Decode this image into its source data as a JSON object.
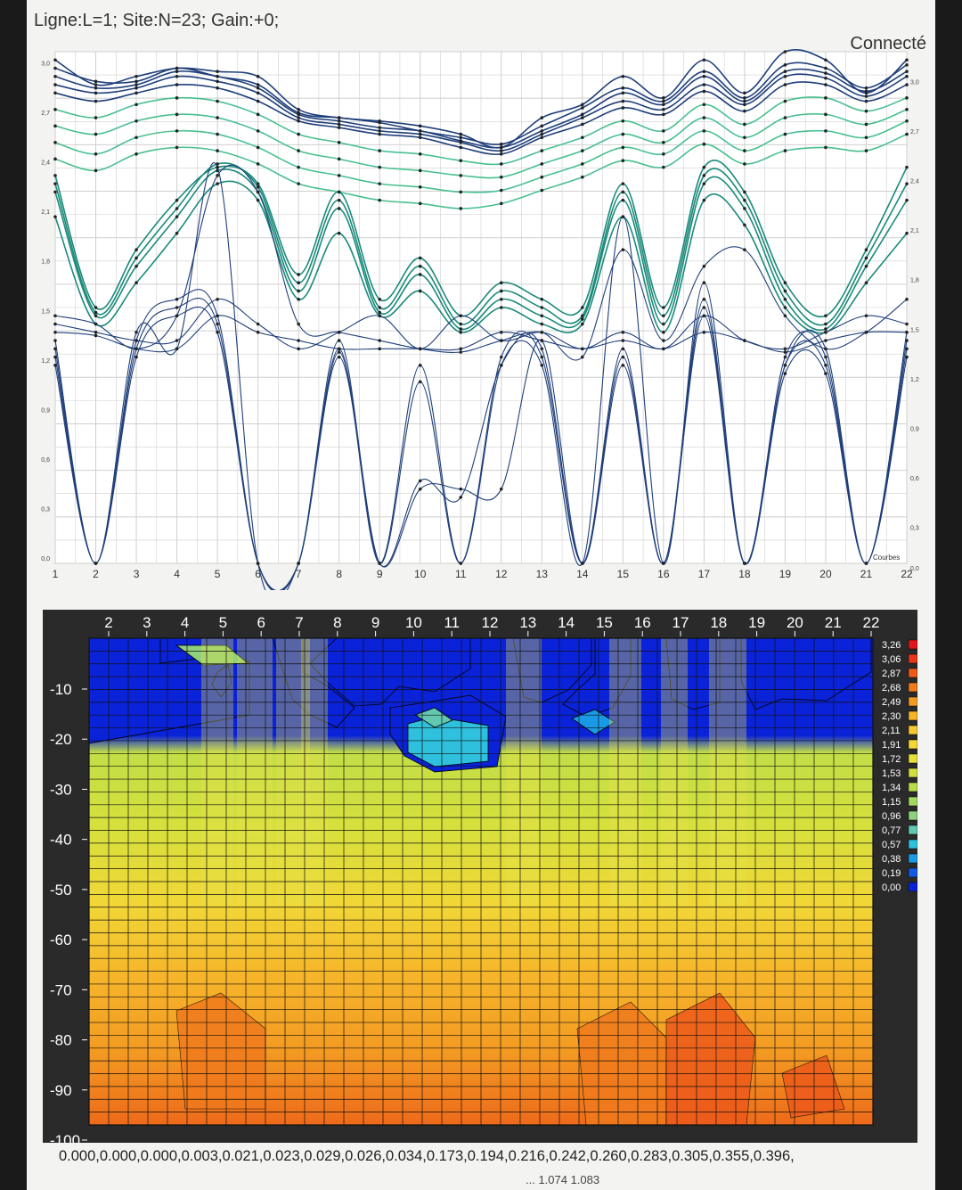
{
  "header": {
    "status_line": "Ligne:L=1;  Site:N=23;  Gain:+0;",
    "connection": "Connecté"
  },
  "curves_chart": {
    "type": "line",
    "x": [
      1,
      2,
      3,
      4,
      5,
      6,
      7,
      8,
      9,
      10,
      11,
      12,
      13,
      14,
      15,
      16,
      17,
      18,
      19,
      20,
      21,
      22
    ],
    "y_ticks_left": [
      "3,0",
      "2,7",
      "2,4",
      "2,1",
      "1,8",
      "1,5",
      "1,2",
      "0,9",
      "0,6",
      "0,3",
      "0,0"
    ],
    "y_ticks_right": [
      "3,0",
      "2,7",
      "2,4",
      "2,1",
      "1,8",
      "1,5",
      "1,2",
      "0,9",
      "0,6",
      "0,3",
      "0,0"
    ],
    "x_ticks": [
      "1",
      "2",
      "3",
      "4",
      "5",
      "6",
      "7",
      "8",
      "9",
      "10",
      "11",
      "12",
      "13",
      "14",
      "15",
      "16",
      "17",
      "18",
      "19",
      "20",
      "21",
      "22"
    ],
    "ylim": [
      0,
      3.1
    ],
    "legend_label": "Courbes",
    "colors": {
      "dark": "#1f3f7a",
      "mid": "#1a8a7a",
      "light": "#48c090"
    },
    "series": [
      {
        "values": [
          3.05,
          2.9,
          2.95,
          3.0,
          2.98,
          2.95,
          2.75,
          2.7,
          2.68,
          2.65,
          2.6,
          2.52,
          2.7,
          2.78,
          2.95,
          2.82,
          3.05,
          2.85,
          3.1,
          3.05,
          2.85,
          3.05
        ]
      },
      {
        "values": [
          3.0,
          2.92,
          2.92,
          3.0,
          2.95,
          2.9,
          2.73,
          2.7,
          2.67,
          2.62,
          2.58,
          2.54,
          2.65,
          2.76,
          2.88,
          2.8,
          2.98,
          2.82,
          3.02,
          3.0,
          2.88,
          3.02
        ]
      },
      {
        "values": [
          2.95,
          2.88,
          2.9,
          2.98,
          2.95,
          2.88,
          2.72,
          2.68,
          2.64,
          2.62,
          2.56,
          2.52,
          2.62,
          2.72,
          2.85,
          2.78,
          2.95,
          2.8,
          2.98,
          2.97,
          2.86,
          2.98
        ]
      },
      {
        "values": [
          2.9,
          2.85,
          2.88,
          2.95,
          2.92,
          2.85,
          2.7,
          2.66,
          2.62,
          2.6,
          2.55,
          2.5,
          2.6,
          2.7,
          2.8,
          2.75,
          2.9,
          2.78,
          2.95,
          2.94,
          2.83,
          2.95
        ]
      },
      {
        "values": [
          2.85,
          2.8,
          2.85,
          2.9,
          2.88,
          2.8,
          2.68,
          2.64,
          2.6,
          2.58,
          2.52,
          2.48,
          2.58,
          2.66,
          2.76,
          2.72,
          2.86,
          2.74,
          2.9,
          2.9,
          2.8,
          2.9
        ]
      },
      {
        "values": [
          2.75,
          2.7,
          2.78,
          2.82,
          2.8,
          2.72,
          2.6,
          2.55,
          2.5,
          2.48,
          2.44,
          2.42,
          2.5,
          2.58,
          2.68,
          2.62,
          2.78,
          2.66,
          2.8,
          2.82,
          2.74,
          2.82
        ]
      },
      {
        "values": [
          2.65,
          2.6,
          2.68,
          2.72,
          2.7,
          2.62,
          2.5,
          2.45,
          2.4,
          2.38,
          2.35,
          2.34,
          2.42,
          2.5,
          2.6,
          2.55,
          2.7,
          2.58,
          2.7,
          2.72,
          2.66,
          2.75
        ]
      },
      {
        "values": [
          2.55,
          2.48,
          2.58,
          2.62,
          2.6,
          2.52,
          2.4,
          2.35,
          2.3,
          2.28,
          2.25,
          2.26,
          2.34,
          2.42,
          2.52,
          2.48,
          2.62,
          2.5,
          2.6,
          2.62,
          2.58,
          2.68
        ]
      },
      {
        "values": [
          2.45,
          2.38,
          2.48,
          2.52,
          2.5,
          2.42,
          2.3,
          2.25,
          2.2,
          2.18,
          2.15,
          2.18,
          2.26,
          2.34,
          2.44,
          2.4,
          2.54,
          2.42,
          2.5,
          2.52,
          2.5,
          2.6
        ]
      },
      {
        "values": [
          2.35,
          1.55,
          1.9,
          2.2,
          2.4,
          2.3,
          1.75,
          2.25,
          1.6,
          1.85,
          1.5,
          1.7,
          1.6,
          1.55,
          2.3,
          1.55,
          2.4,
          2.25,
          1.7,
          1.5,
          1.9,
          2.4
        ]
      },
      {
        "values": [
          2.3,
          1.52,
          1.85,
          2.15,
          2.42,
          2.28,
          1.7,
          2.2,
          1.55,
          1.8,
          1.45,
          1.65,
          1.55,
          1.5,
          2.25,
          1.5,
          2.35,
          2.2,
          1.65,
          1.45,
          1.85,
          2.3
        ]
      },
      {
        "values": [
          2.25,
          1.5,
          1.8,
          2.1,
          2.38,
          2.25,
          1.65,
          2.15,
          1.52,
          1.75,
          1.42,
          1.6,
          1.5,
          1.48,
          2.2,
          1.45,
          2.3,
          2.15,
          1.6,
          1.42,
          1.8,
          2.2
        ]
      },
      {
        "values": [
          2.1,
          1.45,
          1.7,
          2.0,
          2.3,
          2.2,
          1.6,
          2.0,
          1.5,
          1.65,
          1.4,
          1.55,
          1.45,
          1.45,
          2.1,
          1.4,
          2.2,
          2.05,
          1.55,
          1.4,
          1.7,
          2.0
        ]
      },
      {
        "values": [
          1.5,
          1.45,
          1.3,
          1.5,
          2.35,
          2.25,
          1.45,
          1.4,
          1.35,
          1.3,
          1.28,
          1.35,
          1.4,
          1.25,
          1.9,
          1.35,
          1.8,
          1.9,
          1.5,
          1.3,
          1.4,
          1.6
        ]
      },
      {
        "values": [
          1.45,
          1.4,
          1.35,
          1.35,
          1.6,
          1.45,
          1.3,
          1.4,
          1.5,
          1.3,
          1.5,
          1.35,
          1.4,
          1.3,
          1.4,
          1.3,
          1.5,
          1.35,
          1.3,
          1.4,
          1.5,
          1.45
        ]
      },
      {
        "values": [
          1.4,
          1.38,
          1.3,
          1.3,
          1.5,
          1.4,
          1.35,
          1.3,
          1.3,
          1.3,
          1.3,
          1.4,
          1.35,
          1.3,
          1.35,
          1.3,
          1.4,
          1.35,
          1.28,
          1.35,
          1.4,
          1.4
        ]
      },
      {
        "values": [
          1.35,
          0.0,
          1.4,
          1.3,
          2.4,
          0.0,
          0.0,
          1.3,
          0.0,
          1.2,
          0.0,
          1.2,
          1.2,
          0.0,
          2.1,
          0.0,
          1.7,
          0.0,
          1.2,
          1.3,
          0.0,
          1.4
        ]
      },
      {
        "values": [
          1.3,
          0.0,
          1.35,
          1.6,
          1.5,
          0.0,
          0.0,
          1.35,
          0.0,
          1.1,
          0.0,
          1.25,
          1.25,
          0.0,
          1.3,
          0.0,
          1.6,
          0.0,
          1.25,
          1.25,
          0.0,
          1.35
        ]
      },
      {
        "values": [
          1.25,
          0.0,
          1.3,
          1.55,
          1.45,
          0.0,
          0.0,
          1.28,
          0.0,
          0.5,
          0.4,
          1.2,
          1.3,
          0.0,
          1.25,
          0.0,
          1.55,
          0.0,
          1.2,
          1.2,
          0.0,
          1.3
        ]
      },
      {
        "values": [
          1.2,
          0.0,
          1.25,
          1.5,
          1.4,
          0.0,
          0.0,
          1.25,
          0.0,
          0.45,
          0.45,
          0.45,
          1.35,
          0.0,
          1.2,
          0.0,
          1.5,
          0.0,
          1.15,
          1.15,
          0.0,
          1.25
        ]
      }
    ]
  },
  "heatmap": {
    "type": "heatmap",
    "x_ticks": [
      "2",
      "3",
      "4",
      "5",
      "6",
      "7",
      "8",
      "9",
      "10",
      "11",
      "12",
      "13",
      "14",
      "15",
      "16",
      "17",
      "18",
      "19",
      "20",
      "21",
      "22"
    ],
    "y_ticks": [
      "-10",
      "-20",
      "-30",
      "-40",
      "-50",
      "-60",
      "-70",
      "-80",
      "-90",
      "-100"
    ],
    "ylim": [
      0,
      -100
    ],
    "legend": [
      "3,26",
      "3,06",
      "2,87",
      "2,68",
      "2,49",
      "2,30",
      "2,11",
      "1,91",
      "1,72",
      "1,53",
      "1,34",
      "1,15",
      "0,96",
      "0,77",
      "0,57",
      "0,38",
      "0,19",
      "0,00"
    ],
    "legend_colors": [
      "#e0141c",
      "#e8361a",
      "#ed5a1a",
      "#f07a1c",
      "#f39a22",
      "#f6b42a",
      "#f8c832",
      "#f4d838",
      "#e4e03c",
      "#cfe040",
      "#b8dc48",
      "#a4d860",
      "#8ed07c",
      "#62c8b0",
      "#2ec0dc",
      "#1a9ae6",
      "#1258e4",
      "#0a22d8"
    ]
  },
  "readout": {
    "line1": "0.000,0.000,0.000,0.003,0.021,0.023,0.029,0.026,0.034,0.173,0.194,0.216,0.242,0.260,0.283,0.305,0.355,0.396,",
    "line2": "... 1.074 1.083"
  }
}
